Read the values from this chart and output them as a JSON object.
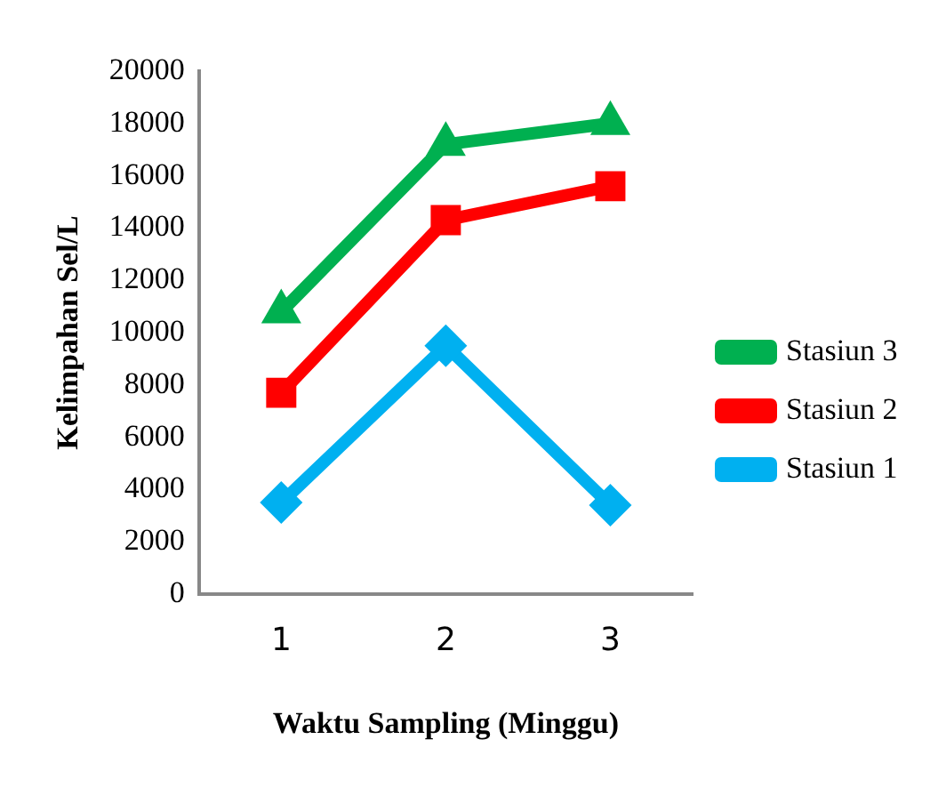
{
  "chart_data": {
    "type": "line",
    "xlabel": "Waktu Sampling (Minggu)",
    "ylabel": "Kelimpahan Sel/L",
    "categories": [
      "1",
      "2",
      "3"
    ],
    "series": [
      {
        "name": "Stasiun 1",
        "color": "#00b0f0",
        "marker": "diamond",
        "values": [
          3500,
          9500,
          3400
        ]
      },
      {
        "name": "Stasiun 2",
        "color": "#ff0000",
        "marker": "square",
        "values": [
          7700,
          14300,
          15600
        ]
      },
      {
        "name": "Stasiun 3",
        "color": "#00b050",
        "marker": "triangle",
        "values": [
          10800,
          17200,
          18000
        ]
      }
    ],
    "ylim": [
      0,
      20000
    ],
    "yticks": [
      0,
      2000,
      4000,
      6000,
      8000,
      10000,
      12000,
      14000,
      16000,
      18000,
      20000
    ],
    "grid": false,
    "legend": "right"
  }
}
